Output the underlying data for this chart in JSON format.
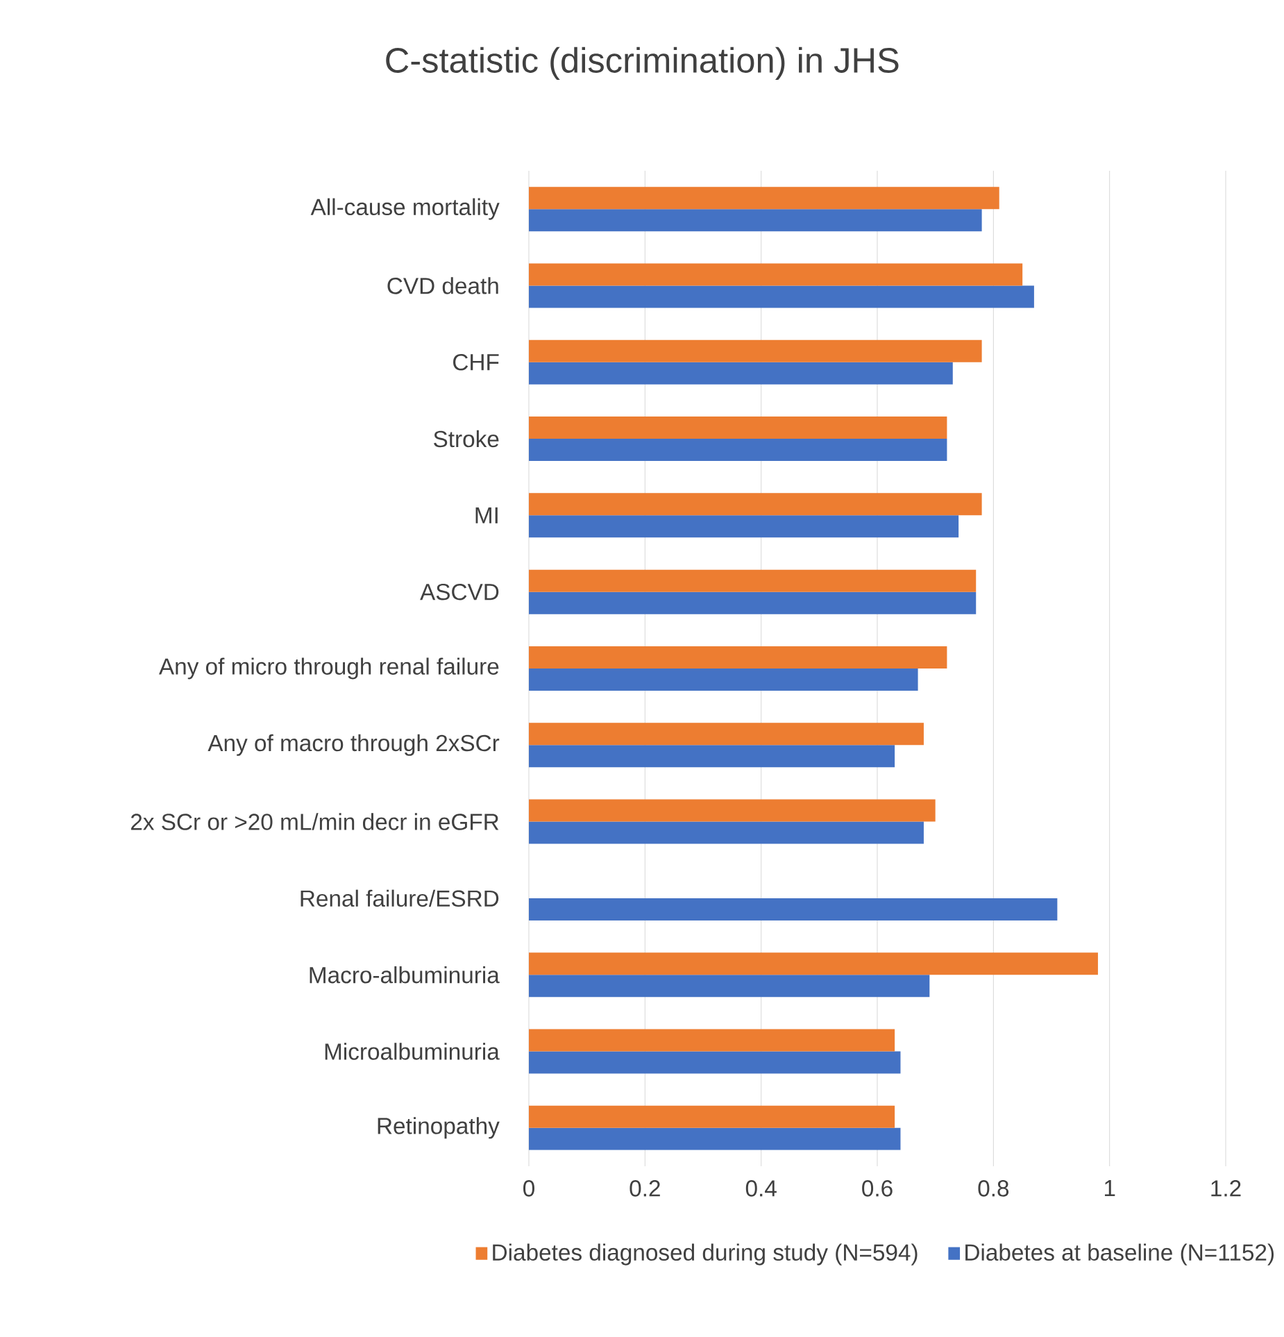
{
  "chart_data": {
    "type": "bar",
    "orientation": "horizontal",
    "title": "C-statistic (discrimination) in JHS",
    "categories": [
      "All-cause mortality",
      "CVD death",
      "CHF",
      "Stroke",
      "MI",
      "ASCVD",
      "Any of micro through renal failure",
      "Any of macro through 2xSCr",
      "2x SCr or >20 mL/min decr in eGFR",
      "Renal failure/ESRD",
      "Macro-albuminuria",
      "Microalbuminuria",
      "Retinopathy"
    ],
    "series": [
      {
        "name": "Diabetes diagnosed during study (N=594)",
        "color": "#ed7d31",
        "values": [
          0.81,
          0.85,
          0.78,
          0.72,
          0.78,
          0.77,
          0.72,
          0.68,
          0.7,
          null,
          0.98,
          0.63,
          0.63
        ]
      },
      {
        "name": "Diabetes at baseline (N=1152)",
        "color": "#4472c4",
        "values": [
          0.78,
          0.87,
          0.73,
          0.72,
          0.74,
          0.77,
          0.67,
          0.63,
          0.68,
          0.91,
          0.69,
          0.64,
          0.64
        ]
      }
    ],
    "xlim": [
      0,
      1.2
    ],
    "xticks": [
      0,
      0.2,
      0.4,
      0.6,
      0.8,
      1,
      1.2
    ],
    "grid": "x",
    "legend": "bottom"
  }
}
